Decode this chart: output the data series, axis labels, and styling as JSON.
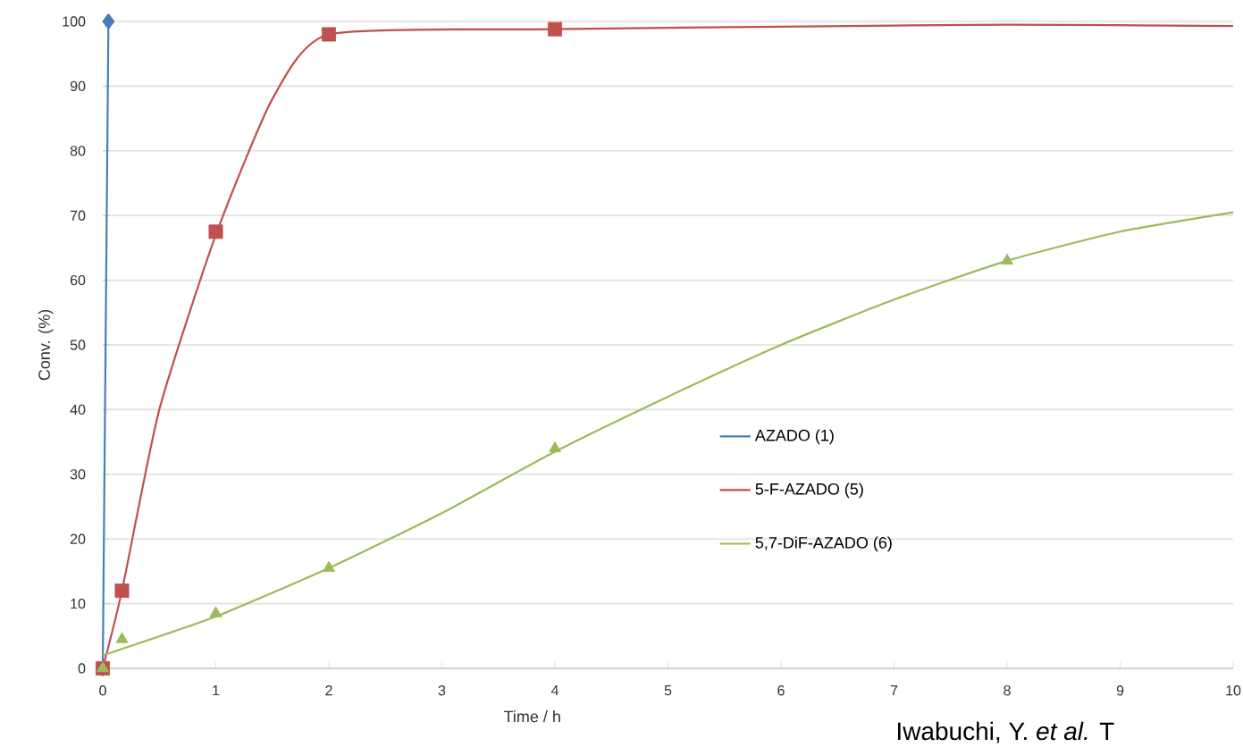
{
  "chart_data": {
    "type": "line",
    "xlabel": "Time / h",
    "ylabel": "Conv. (%)",
    "annotations": [
      "Iwabuchi, Y. *et al.* T"
    ],
    "xlim": [
      0,
      10
    ],
    "ylim": [
      0,
      100
    ],
    "xticks": [
      0,
      1,
      2,
      3,
      4,
      5,
      6,
      7,
      8,
      9,
      10
    ],
    "yticks": [
      0,
      10,
      20,
      30,
      40,
      50,
      60,
      70,
      80,
      90,
      100
    ],
    "grid": "y",
    "legend": "right",
    "series": [
      {
        "name": "AZADO (1)",
        "marker": "diamond",
        "color": "#4a7ebb",
        "x": [
          0,
          0.05
        ],
        "values": [
          0,
          100
        ]
      },
      {
        "name": "5-F-AZADO (5)",
        "color": "#c0504d",
        "x": [
          0,
          0.17,
          0.5,
          1,
          1.5,
          2,
          4,
          6,
          8,
          10
        ],
        "values": [
          0,
          12,
          40,
          67,
          88,
          98,
          98.8,
          99.2,
          99.5,
          99.3
        ]
      },
      {
        "name": "5,7-DiF-AZADO (6)",
        "color": "#9bbb59",
        "x": [
          0,
          0.17,
          1,
          2,
          3,
          4,
          5,
          6,
          7,
          8,
          9,
          10
        ],
        "values": [
          2,
          3,
          8,
          15.5,
          24,
          33.5,
          42,
          50,
          57,
          63,
          67.5,
          70.5
        ]
      },
      {
        "type": "scatter",
        "marker": "square",
        "color": "#c0504d",
        "x": [
          0,
          0.17,
          1,
          2,
          4
        ],
        "values": [
          0,
          12,
          67.5,
          98,
          98.8
        ]
      },
      {
        "type": "scatter",
        "marker": "triangle",
        "color": "#9bbb59",
        "x": [
          0,
          0.17,
          1,
          2,
          4,
          8
        ],
        "values": [
          0,
          4.5,
          8.5,
          15.5,
          34,
          63
        ]
      }
    ]
  }
}
